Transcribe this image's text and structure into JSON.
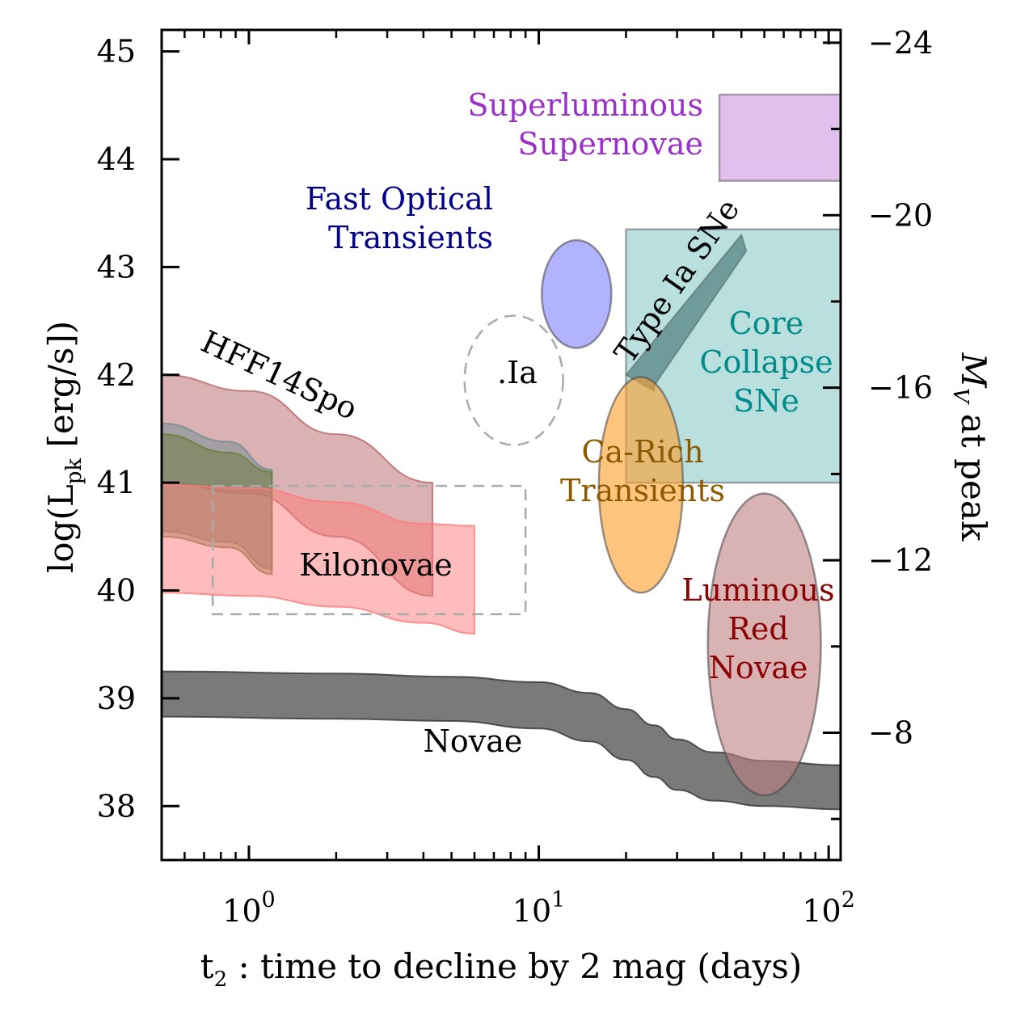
{
  "chart_data": {
    "type": "area",
    "xlabel": "t",
    "xlabel_sub": "2",
    "xlabel_rest": " : time to decline by 2 mag (days)",
    "ylabel_prefix": "log(L",
    "ylabel_sub": "pk",
    "ylabel_suffix": " [erg/s])",
    "y2label_math": "M",
    "y2label_sub": "V",
    "y2label_rest": " at peak",
    "x_scale": "log",
    "xlim": [
      0.5,
      110
    ],
    "ylim": [
      37.5,
      45.2
    ],
    "x_ticks": [
      {
        "base": "10",
        "exp": "0",
        "value": 1
      },
      {
        "base": "10",
        "exp": "1",
        "value": 10
      },
      {
        "base": "10",
        "exp": "2",
        "value": 100
      }
    ],
    "y_ticks": [
      {
        "label": "38",
        "value": 38
      },
      {
        "label": "39",
        "value": 39
      },
      {
        "label": "40",
        "value": 40
      },
      {
        "label": "41",
        "value": 41
      },
      {
        "label": "42",
        "value": 42
      },
      {
        "label": "43",
        "value": 43
      },
      {
        "label": "44",
        "value": 44
      },
      {
        "label": "45",
        "value": 45
      }
    ],
    "y2_ticks": [
      {
        "label": "−8",
        "value": -8
      },
      {
        "label": "−12",
        "value": -12
      },
      {
        "label": "−16",
        "value": -16
      },
      {
        "label": "−20",
        "value": -20
      },
      {
        "label": "−24",
        "value": -24
      }
    ],
    "regions": [
      {
        "name": "Superluminous\nSupernovae",
        "shape": "rect",
        "x": [
          42,
          110
        ],
        "y": [
          43.8,
          44.6
        ],
        "fill": "#c98de0",
        "text_color": "#9b30c8"
      },
      {
        "name": "Core\nCollapse\nSNe",
        "shape": "rect",
        "x": [
          20,
          110
        ],
        "y": [
          41.0,
          43.35
        ],
        "fill": "#7fc5c3",
        "text_color": "#008b8b"
      },
      {
        "name": "Fast Optical\nTransients",
        "shape": "ellipse",
        "center": [
          13.5,
          42.75
        ],
        "x_half_dex": 0.12,
        "y_half": 0.5,
        "fill": "#7e80ff",
        "text_color": "#00008b"
      },
      {
        "name": ".Ia",
        "shape": "ellipse",
        "center": [
          8.2,
          41.95
        ],
        "x_half_dex": 0.17,
        "y_half": 0.6,
        "dashed": true,
        "text_color": "#000000"
      },
      {
        "name": "Type Ia SNe",
        "shape": "polygon",
        "x": [
          20,
          50,
          52,
          25,
          25
        ],
        "y": [
          42.0,
          43.3,
          43.15,
          41.9,
          41.85
        ],
        "fill": "#5c8a8a",
        "text_color": "#000000"
      },
      {
        "name": "Ca-Rich\nTransients",
        "shape": "ellipse",
        "center": [
          22.5,
          40.98
        ],
        "x_half_dex": 0.145,
        "y_half": 1.0,
        "fill": "#ff9e2a",
        "text_color": "#8b5a00"
      },
      {
        "name": "Luminous\nRed\nNovae",
        "shape": "ellipse",
        "center": [
          60,
          39.5
        ],
        "x_half_dex": 0.195,
        "y_half": 1.4,
        "fill": "#c07e82",
        "text_color": "#8b0000"
      },
      {
        "name": "Kilonovae",
        "shape": "rect",
        "x": [
          0.75,
          9
        ],
        "y": [
          39.78,
          40.97
        ],
        "dashed": true,
        "text_color": "#000000"
      },
      {
        "name": "HFF14Spo",
        "shape": "band",
        "text_color": "#000000",
        "x": [
          0.5,
          1.0,
          2.0,
          4.3
        ],
        "upper": [
          42.0,
          41.85,
          41.45,
          41.0
        ],
        "lower": [
          41.0,
          40.9,
          40.5,
          39.95
        ],
        "fill": "#b86668"
      },
      {
        "name": "",
        "shape": "band",
        "x": [
          0.5,
          0.85,
          1.2
        ],
        "upper": [
          41.55,
          41.38,
          41.12
        ],
        "lower": [
          40.55,
          40.45,
          40.2
        ],
        "fill": "#6e8c91"
      },
      {
        "name": "",
        "shape": "band",
        "x": [
          0.5,
          0.85,
          1.2
        ],
        "upper": [
          41.45,
          41.28,
          41.1
        ],
        "lower": [
          40.5,
          40.4,
          40.15
        ],
        "fill": "#6a7a3a"
      },
      {
        "name": "",
        "shape": "band",
        "x": [
          0.5,
          1.0,
          2.0,
          4.0,
          6.0
        ],
        "upper": [
          40.98,
          40.95,
          40.82,
          40.62,
          40.6
        ],
        "lower": [
          39.98,
          39.95,
          39.85,
          39.7,
          39.6
        ],
        "fill": "#ff7a7a"
      },
      {
        "name": "Novae",
        "shape": "band",
        "text_color": "#000000",
        "x": [
          0.5,
          2,
          5,
          10,
          15,
          20,
          25,
          30,
          40,
          60,
          110
        ],
        "upper": [
          39.25,
          39.23,
          39.2,
          39.15,
          39.05,
          38.9,
          38.75,
          38.62,
          38.5,
          38.42,
          38.38
        ],
        "lower": [
          38.83,
          38.81,
          38.79,
          38.72,
          38.6,
          38.43,
          38.27,
          38.15,
          38.05,
          38.0,
          37.97
        ],
        "fill": "#333333"
      }
    ]
  }
}
